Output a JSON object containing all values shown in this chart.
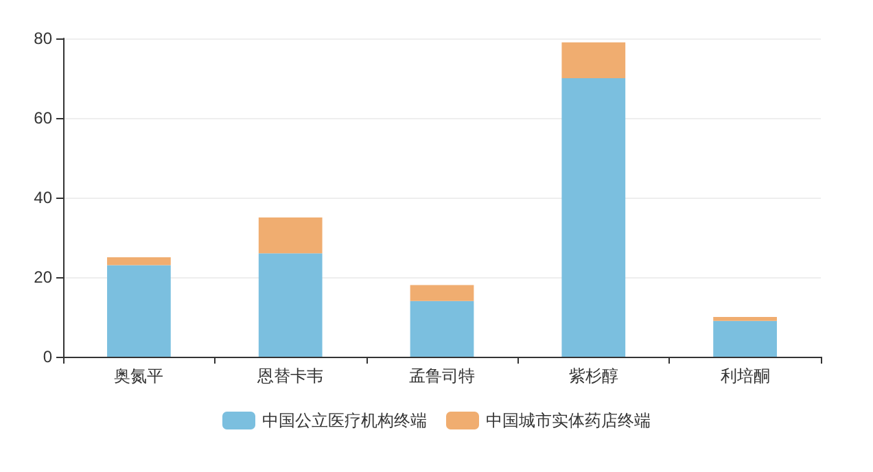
{
  "chart_data": {
    "type": "bar",
    "stacked": true,
    "categories": [
      "奥氮平",
      "恩替卡韦",
      "孟鲁司特",
      "紫杉醇",
      "利培酮"
    ],
    "series": [
      {
        "name": "中国公立医疗机构终端",
        "color": "#7bbfdf",
        "values": [
          23,
          26,
          14,
          70,
          9
        ]
      },
      {
        "name": "中国城市实体药店终端",
        "color": "#f0ad70",
        "values": [
          2,
          9,
          4,
          9,
          1
        ]
      }
    ],
    "ylim": [
      0,
      80
    ],
    "yticks": [
      0,
      20,
      40,
      60,
      80
    ],
    "grid": "y",
    "legend": "bottom"
  }
}
